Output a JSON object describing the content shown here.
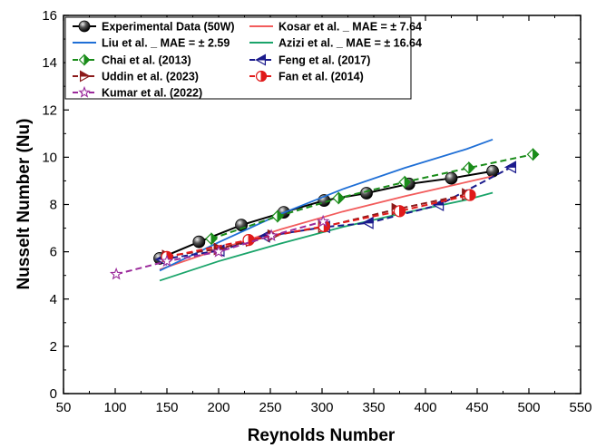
{
  "chart_data": {
    "type": "line",
    "xlabel": "Reynolds Number",
    "ylabel": "Nusselt Number (Nu)",
    "xlim": [
      50,
      550
    ],
    "ylim": [
      0,
      16
    ],
    "x_ticks": [
      50,
      100,
      150,
      200,
      250,
      300,
      350,
      400,
      450,
      500,
      550
    ],
    "y_ticks": [
      0,
      2,
      4,
      6,
      8,
      10,
      12,
      14,
      16
    ],
    "x_tick_labels": [
      "50",
      "100",
      "150",
      "200",
      "250",
      "300",
      "350",
      "400",
      "450",
      "500",
      "550"
    ],
    "y_tick_labels": [
      "0",
      "2",
      "4",
      "6",
      "8",
      "10",
      "12",
      "14",
      "16"
    ],
    "grid": false,
    "legend_position": "top-left",
    "series": [
      {
        "name": "Experimental Data (50W)",
        "color": "#000000",
        "style": "solid",
        "marker": "sphere",
        "x": [
          143,
          181,
          222,
          263,
          302,
          343,
          384,
          425,
          465
        ],
        "y": [
          5.72,
          6.42,
          7.13,
          7.67,
          8.17,
          8.48,
          8.87,
          9.11,
          9.41
        ]
      },
      {
        "name": "Kosar et al. _ MAE = ± 7.64",
        "color": "#f25c5c",
        "style": "solid",
        "marker": "none",
        "x": [
          143,
          200,
          260,
          320,
          380,
          440,
          465
        ],
        "y": [
          5.25,
          6.1,
          6.95,
          7.7,
          8.35,
          8.95,
          9.2
        ]
      },
      {
        "name": "Liu et al. _ MAE = ± 2.59",
        "color": "#1f6fd6",
        "style": "solid",
        "marker": "none",
        "x": [
          143,
          200,
          260,
          320,
          380,
          440,
          465
        ],
        "y": [
          5.2,
          6.4,
          7.6,
          8.65,
          9.55,
          10.35,
          10.75
        ]
      },
      {
        "name": "Azizi et al. _ MAE = ± 16.64",
        "color": "#1aa46a",
        "style": "solid",
        "marker": "none",
        "x": [
          143,
          200,
          260,
          320,
          380,
          440,
          465
        ],
        "y": [
          4.78,
          5.6,
          6.35,
          7.05,
          7.65,
          8.2,
          8.5
        ]
      },
      {
        "name": "Chai et al. (2013)",
        "color": "#1a8c1a",
        "style": "dashed",
        "marker": "diamond-half",
        "x": [
          193,
          257,
          316,
          380,
          442,
          504
        ],
        "y": [
          6.55,
          7.5,
          8.27,
          8.95,
          9.55,
          10.12
        ]
      },
      {
        "name": "Feng et al. (2017)",
        "color": "#1a1a8c",
        "style": "dashed",
        "marker": "triangle-left",
        "x": [
          145,
          201,
          245,
          303,
          345,
          413,
          483
        ],
        "y": [
          5.68,
          6.05,
          6.65,
          7.05,
          7.22,
          7.98,
          9.58
        ]
      },
      {
        "name": "Uddin et al. (2023)",
        "color": "#8c1a1a",
        "style": "dashed",
        "marker": "triangle-right",
        "x": [
          150,
          200,
          231,
          252,
          301,
          372,
          440
        ],
        "y": [
          5.82,
          6.12,
          6.47,
          6.68,
          7.05,
          7.8,
          8.43
        ]
      },
      {
        "name": "Fan et al. (2014)",
        "color": "#e01a1a",
        "style": "dashed",
        "marker": "circle-half",
        "x": [
          150,
          229,
          302,
          375,
          443
        ],
        "y": [
          5.78,
          6.5,
          7.08,
          7.72,
          8.4
        ]
      },
      {
        "name": "Kumar et al. (2022)",
        "color": "#9b2a9b",
        "style": "dashed",
        "marker": "star",
        "x": [
          101,
          150,
          200,
          251,
          301
        ],
        "y": [
          5.05,
          5.6,
          6.0,
          6.68,
          7.28
        ]
      }
    ]
  }
}
